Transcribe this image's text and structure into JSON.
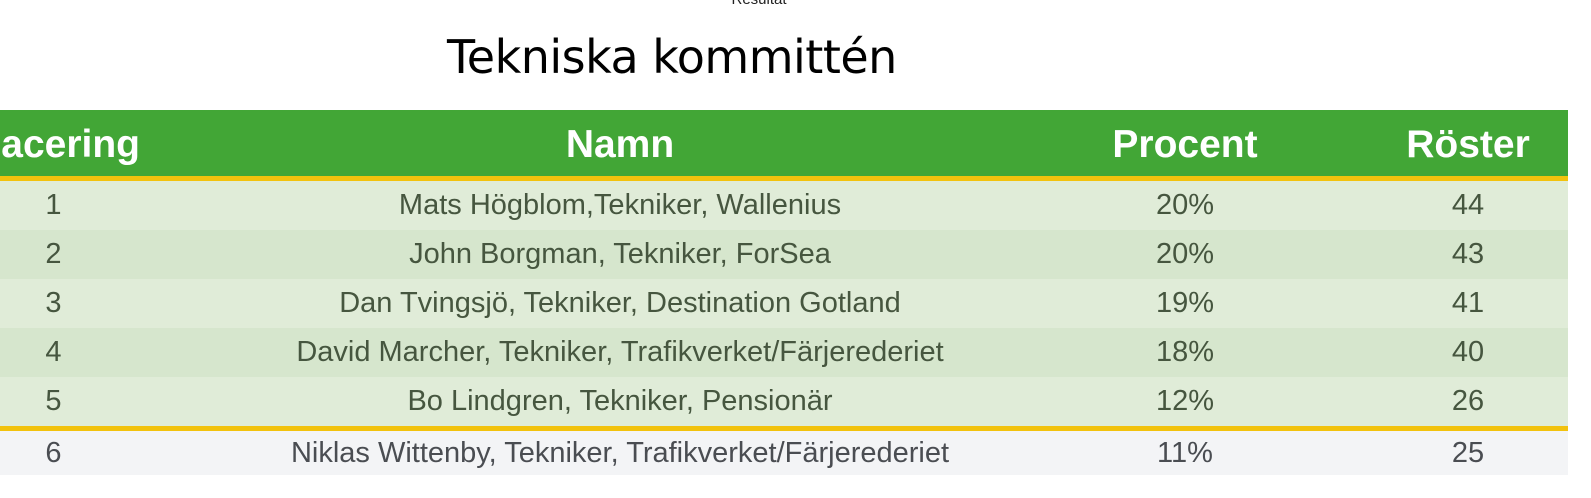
{
  "header": {
    "top_label": "Resultat",
    "title": "Tekniska kommittén"
  },
  "table": {
    "columns": [
      "Placering",
      "Namn",
      "Procent",
      "Röster"
    ],
    "rows": [
      {
        "place": "1",
        "name": "Mats Högblom,Tekniker, Wallenius",
        "percent": "20%",
        "votes": "44"
      },
      {
        "place": "2",
        "name": "John Borgman, Tekniker, ForSea",
        "percent": "20%",
        "votes": "43"
      },
      {
        "place": "3",
        "name": "Dan Tvingsjö, Tekniker, Destination Gotland",
        "percent": "19%",
        "votes": "41"
      },
      {
        "place": "4",
        "name": "David Marcher, Tekniker, Trafikverket/Färjerederiet",
        "percent": "18%",
        "votes": "40"
      },
      {
        "place": "5",
        "name": "Bo Lindgren, Tekniker, Pensionär",
        "percent": "12%",
        "votes": "26"
      },
      {
        "place": "6",
        "name": "Niklas Wittenby, Tekniker, Trafikverket/Färjerederiet",
        "percent": "11%",
        "votes": "25"
      }
    ]
  },
  "colors": {
    "header_green": "#42a636",
    "divider_yellow": "#f2c20d",
    "row_light_green": "#e0ecd8",
    "row_mid_green": "#d6e6cd",
    "row_gray": "#f3f4f6"
  }
}
